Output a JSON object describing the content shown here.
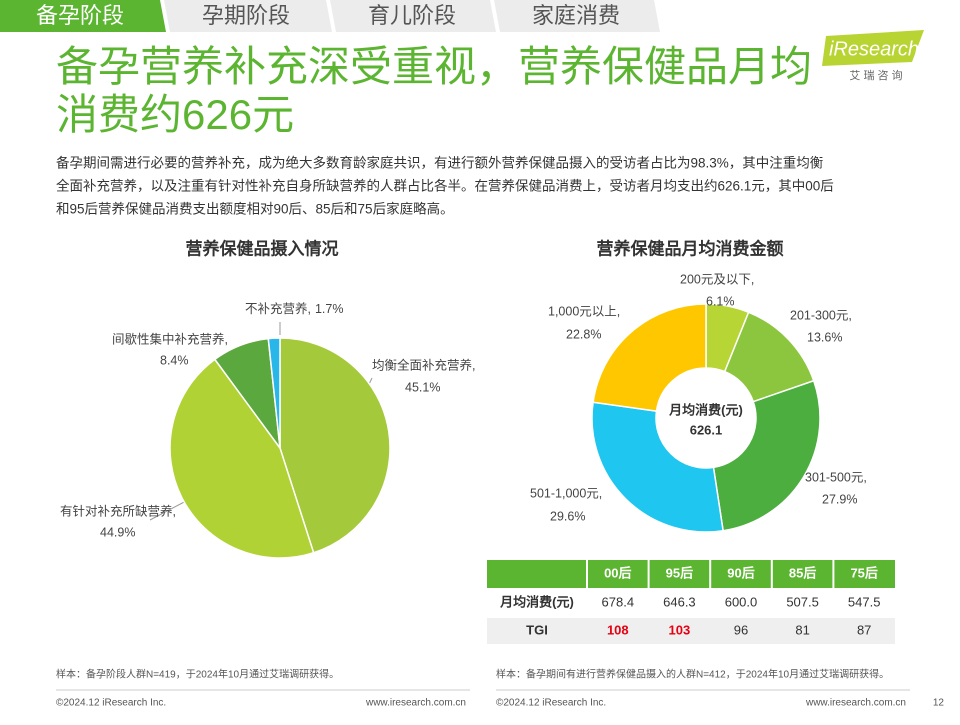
{
  "tabs": [
    "备孕阶段",
    "孕期阶段",
    "育儿阶段",
    "家庭消费"
  ],
  "logo": {
    "name": "iResearch",
    "sub": "艾 瑞 咨 询"
  },
  "title": [
    "备孕营养补充深受重视，营养保健品月均",
    "消费约626元"
  ],
  "paragraph": [
    "备孕期间需进行必要的营养补充，成为绝大多数育龄家庭共识，有进行额外营养保健品摄入的受访者占比为98.3%，其中注重均衡",
    "全面补充营养，以及注重有针对性补充自身所缺营养的人群占比各半。在营养保健品消费上，受访者月均支出约626.1元，其中00后",
    "和95后营养保健品消费支出额度相对90后、85后和75后家庭略高。"
  ],
  "chart_data": [
    {
      "type": "pie",
      "title": "营养保健品摄入情况",
      "categories": [
        "均衡全面补充营养,",
        "有针对补充所缺营养,",
        "间歇性集中补充营养,",
        "不补充营养,"
      ],
      "values": [
        45.1,
        44.9,
        8.4,
        1.7
      ],
      "value_labels": [
        "45.1%",
        "44.9%",
        "8.4%",
        "1.7%"
      ],
      "colors": [
        "#a4c93a",
        "#b1d234",
        "#5aa83e",
        "#29b7e9"
      ]
    },
    {
      "type": "donut",
      "title": "营养保健品月均消费金额",
      "categories": [
        "200元及以下,",
        "201-300元,",
        "301-500元,",
        "501-1,000元,",
        "1,000元以上,"
      ],
      "values": [
        6.1,
        13.6,
        27.9,
        29.6,
        22.8
      ],
      "value_labels": [
        "6.1%",
        "13.6%",
        "27.9%",
        "29.6%",
        "22.8%"
      ],
      "colors": [
        "#b7d534",
        "#8cc63f",
        "#4cae3f",
        "#1fc6f0",
        "#ffc700"
      ],
      "center_label": [
        "月均消费(元)",
        "626.1"
      ]
    }
  ],
  "table": {
    "columns": [
      "00后",
      "95后",
      "90后",
      "85后",
      "75后"
    ],
    "rows": [
      {
        "label": "月均消费(元)",
        "cells": [
          "678.4",
          "646.3",
          "600.0",
          "507.5",
          "547.5"
        ],
        "cell_colors": [
          "#333333",
          "#333333",
          "#333333",
          "#333333",
          "#333333"
        ]
      },
      {
        "label": "TGI",
        "cells": [
          "108",
          "103",
          "96",
          "81",
          "87"
        ],
        "cell_colors": [
          "#e60012",
          "#e60012",
          "#333333",
          "#333333",
          "#333333"
        ]
      }
    ]
  },
  "notes": [
    "样本：备孕阶段人群N=419，于2024年10月通过艾瑞调研获得。",
    "样本：备孕期间有进行营养保健品摄入的人群N=412，于2024年10月通过艾瑞调研获得。"
  ],
  "footer": {
    "copyright": [
      "©2024.12 iResearch Inc.",
      "©2024.12 iResearch Inc."
    ],
    "url": [
      "www.iresearch.com.cn",
      "www.iresearch.com.cn"
    ],
    "page": "12"
  }
}
